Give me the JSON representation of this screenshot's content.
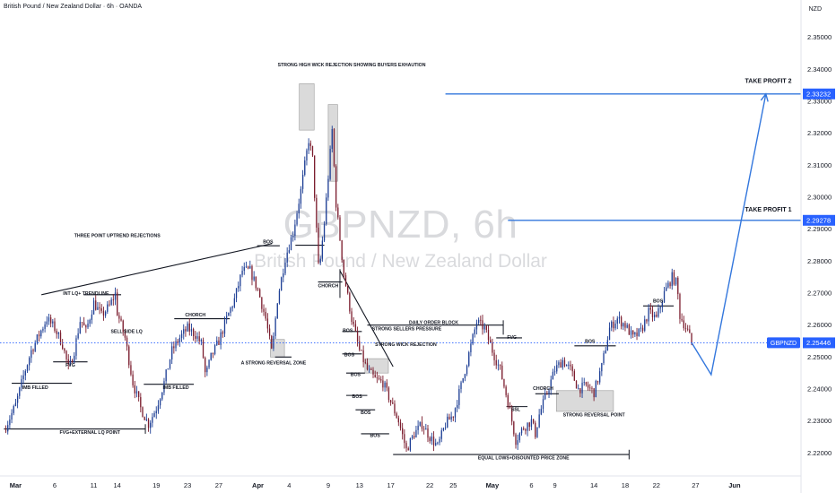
{
  "header": {
    "title": "British Pound / New Zealand Dollar · 6h · OANDA"
  },
  "watermark": {
    "symbol": "GBPNZD, 6h",
    "name": "British Pound / New Zealand Dollar"
  },
  "price_axis": {
    "currency": "NZD"
  },
  "chart_data": {
    "type": "candlestick",
    "symbol": "GBPNZD",
    "interval": "6h",
    "source": "OANDA",
    "y_ticks": [
      2.22,
      2.23,
      2.24,
      2.25,
      2.26,
      2.27,
      2.28,
      2.29,
      2.3,
      2.31,
      2.32,
      2.33,
      2.34,
      2.35
    ],
    "y_tick_labels": [
      "2.22000",
      "2.23000",
      "2.24000",
      "2.25000",
      "2.26000",
      "2.27000",
      "2.28000",
      "2.29000",
      "2.30000",
      "2.31000",
      "2.32000",
      "2.33000",
      "2.34000",
      "2.35000"
    ],
    "ylim": [
      2.2128,
      2.3617
    ],
    "x_ticks": [
      {
        "label": "Mar",
        "day": 0,
        "bold": true
      },
      {
        "label": "6",
        "day": 5
      },
      {
        "label": "11",
        "day": 10
      },
      {
        "label": "14",
        "day": 13
      },
      {
        "label": "19",
        "day": 18
      },
      {
        "label": "23",
        "day": 22
      },
      {
        "label": "27",
        "day": 26
      },
      {
        "label": "Apr",
        "day": 31,
        "bold": true
      },
      {
        "label": "4",
        "day": 35
      },
      {
        "label": "9",
        "day": 40
      },
      {
        "label": "13",
        "day": 44
      },
      {
        "label": "17",
        "day": 48
      },
      {
        "label": "22",
        "day": 53
      },
      {
        "label": "25",
        "day": 56
      },
      {
        "label": "May",
        "day": 61,
        "bold": true
      },
      {
        "label": "6",
        "day": 66
      },
      {
        "label": "9",
        "day": 69
      },
      {
        "label": "14",
        "day": 74
      },
      {
        "label": "18",
        "day": 78
      },
      {
        "label": "22",
        "day": 82
      },
      {
        "label": "27",
        "day": 87
      },
      {
        "label": "Jun",
        "day": 92,
        "bold": true
      }
    ],
    "xlim_days": [
      -2,
      100.5
    ],
    "price_path": [
      [
        -1.5,
        2.227
      ],
      [
        0,
        2.235
      ],
      [
        1,
        2.244
      ],
      [
        2,
        2.252
      ],
      [
        4,
        2.262
      ],
      [
        5,
        2.259
      ],
      [
        6,
        2.254
      ],
      [
        6.8,
        2.246
      ],
      [
        7.5,
        2.252
      ],
      [
        8.3,
        2.262
      ],
      [
        9,
        2.258
      ],
      [
        10,
        2.267
      ],
      [
        11,
        2.263
      ],
      [
        12,
        2.266
      ],
      [
        12.8,
        2.27
      ],
      [
        13,
        2.264
      ],
      [
        14,
        2.256
      ],
      [
        15,
        2.242
      ],
      [
        16,
        2.234
      ],
      [
        17,
        2.229
      ],
      [
        18,
        2.234
      ],
      [
        19,
        2.242
      ],
      [
        20,
        2.252
      ],
      [
        21,
        2.256
      ],
      [
        22,
        2.259
      ],
      [
        23,
        2.257
      ],
      [
        23.8,
        2.254
      ],
      [
        24.3,
        2.244
      ],
      [
        25,
        2.25
      ],
      [
        26,
        2.255
      ],
      [
        27,
        2.262
      ],
      [
        28,
        2.268
      ],
      [
        29,
        2.277
      ],
      [
        30,
        2.277
      ],
      [
        31,
        2.271
      ],
      [
        32,
        2.262
      ],
      [
        32.8,
        2.251
      ],
      [
        33.5,
        2.268
      ],
      [
        34.5,
        2.281
      ],
      [
        35.5,
        2.289
      ],
      [
        36.5,
        2.302
      ],
      [
        37.5,
        2.318
      ],
      [
        38,
        2.312
      ],
      [
        38.8,
        2.276
      ],
      [
        39.5,
        2.292
      ],
      [
        40.5,
        2.321
      ],
      [
        41,
        2.298
      ],
      [
        42,
        2.276
      ],
      [
        43,
        2.262
      ],
      [
        44,
        2.252
      ],
      [
        45,
        2.246
      ],
      [
        46,
        2.243
      ],
      [
        47,
        2.242
      ],
      [
        48,
        2.236
      ],
      [
        49,
        2.23
      ],
      [
        50,
        2.221
      ],
      [
        51,
        2.226
      ],
      [
        52,
        2.229
      ],
      [
        53,
        2.225
      ],
      [
        54,
        2.222
      ],
      [
        55,
        2.229
      ],
      [
        56,
        2.232
      ],
      [
        57,
        2.241
      ],
      [
        58,
        2.251
      ],
      [
        59,
        2.261
      ],
      [
        60,
        2.259
      ],
      [
        61,
        2.252
      ],
      [
        62,
        2.246
      ],
      [
        63,
        2.236
      ],
      [
        64,
        2.224
      ],
      [
        65,
        2.228
      ],
      [
        66,
        2.23
      ],
      [
        66.5,
        2.226
      ],
      [
        67,
        2.232
      ],
      [
        68,
        2.239
      ],
      [
        69,
        2.246
      ],
      [
        70,
        2.249
      ],
      [
        71,
        2.246
      ],
      [
        72,
        2.24
      ],
      [
        73,
        2.241
      ],
      [
        74,
        2.239
      ],
      [
        75,
        2.247
      ],
      [
        76,
        2.259
      ],
      [
        77,
        2.262
      ],
      [
        78,
        2.26
      ],
      [
        79,
        2.256
      ],
      [
        80,
        2.258
      ],
      [
        81,
        2.264
      ],
      [
        82,
        2.262
      ],
      [
        83,
        2.27
      ],
      [
        84,
        2.275
      ],
      [
        84.6,
        2.273
      ],
      [
        85,
        2.263
      ],
      [
        86,
        2.258
      ],
      [
        86.5,
        2.2545
      ]
    ],
    "last_price": {
      "label": "GBPNZD",
      "value": 2.25446,
      "value_text": "2.25446"
    },
    "levels": [
      {
        "name": "TAKE PROFIT 2",
        "value": 2.33232,
        "value_text": "2.33232",
        "from_day": 55
      },
      {
        "name": "TAKE PROFIT 1",
        "value": 2.29278,
        "value_text": "2.29278",
        "from_day": 63
      }
    ],
    "projection": [
      [
        86.5,
        2.2545
      ],
      [
        89,
        2.2445
      ],
      [
        96,
        2.3323
      ]
    ],
    "zones": [
      {
        "d0": 32.6,
        "d1": 34.4,
        "p0": 2.25,
        "p1": 2.2555
      },
      {
        "d0": 36.3,
        "d1": 38.2,
        "p0": 2.321,
        "p1": 2.3355
      },
      {
        "d0": 40.0,
        "d1": 41.2,
        "p0": 2.305,
        "p1": 2.329
      },
      {
        "d0": 44.7,
        "d1": 47.7,
        "p0": 2.245,
        "p1": 2.2495
      },
      {
        "d0": 69.2,
        "d1": 76.5,
        "p0": 2.233,
        "p1": 2.2395
      }
    ],
    "lines": [
      {
        "pts": [
          [
            -1.5,
            2.2275
          ],
          [
            16.6,
            2.2275
          ]
        ]
      },
      {
        "pts": [
          [
            -0.5,
            2.2418
          ],
          [
            7.2,
            2.2418
          ]
        ]
      },
      {
        "pts": [
          [
            3.3,
            2.2695
          ],
          [
            32.8,
            2.2855
          ]
        ]
      },
      {
        "pts": [
          [
            4.8,
            2.2485
          ],
          [
            9.2,
            2.2485
          ]
        ]
      },
      {
        "pts": [
          [
            8.7,
            2.2695
          ],
          [
            13.5,
            2.2695
          ]
        ]
      },
      {
        "pts": [
          [
            16.4,
            2.2415
          ],
          [
            22.8,
            2.2415
          ]
        ]
      },
      {
        "pts": [
          [
            20.3,
            2.262
          ],
          [
            27.4,
            2.262
          ]
        ]
      },
      {
        "pts": [
          [
            30.9,
            2.2848
          ],
          [
            33.8,
            2.2848
          ]
        ]
      },
      {
        "pts": [
          [
            33.2,
            2.25
          ],
          [
            35.3,
            2.25
          ]
        ]
      },
      {
        "pts": [
          [
            35.8,
            2.285
          ],
          [
            39.5,
            2.285
          ]
        ]
      },
      {
        "pts": [
          [
            38.7,
            2.2735
          ],
          [
            41.8,
            2.2735
          ]
        ]
      },
      {
        "pts": [
          [
            41.5,
            2.277
          ],
          [
            48.3,
            2.247
          ]
        ]
      },
      {
        "pts": [
          [
            41.8,
            2.258
          ],
          [
            44.3,
            2.258
          ]
        ]
      },
      {
        "pts": [
          [
            41.8,
            2.251
          ],
          [
            44.3,
            2.251
          ]
        ]
      },
      {
        "pts": [
          [
            42.3,
            2.245
          ],
          [
            44.7,
            2.245
          ]
        ]
      },
      {
        "pts": [
          [
            42.3,
            2.238
          ],
          [
            45.0,
            2.238
          ]
        ]
      },
      {
        "pts": [
          [
            43.5,
            2.2335
          ],
          [
            46.0,
            2.2335
          ]
        ]
      },
      {
        "pts": [
          [
            44.2,
            2.226
          ],
          [
            47.8,
            2.226
          ]
        ]
      },
      {
        "pts": [
          [
            45.0,
            2.26
          ],
          [
            62.4,
            2.26
          ]
        ]
      },
      {
        "pts": [
          [
            48.3,
            2.2195
          ],
          [
            78.5,
            2.2195
          ]
        ]
      },
      {
        "pts": [
          [
            61.5,
            2.256
          ],
          [
            64.8,
            2.256
          ]
        ]
      },
      {
        "pts": [
          [
            62.8,
            2.2345
          ],
          [
            65.5,
            2.2345
          ]
        ]
      },
      {
        "pts": [
          [
            66.5,
            2.2385
          ],
          [
            69.5,
            2.2385
          ]
        ]
      },
      {
        "pts": [
          [
            71.5,
            2.2535
          ],
          [
            76.8,
            2.2535
          ]
        ]
      },
      {
        "pts": [
          [
            80.3,
            2.266
          ],
          [
            84.2,
            2.266
          ]
        ]
      }
    ],
    "ticks_marks": [
      {
        "d": 16.6,
        "p0": 2.226,
        "p1": 2.229
      },
      {
        "d": 41.5,
        "p0": 2.2685,
        "p1": 2.2775
      },
      {
        "d": 62.4,
        "p0": 2.257,
        "p1": 2.2615
      },
      {
        "d": 78.5,
        "p0": 2.218,
        "p1": 2.221
      }
    ],
    "annotations": [
      {
        "text": "STRONG HIGH WICK REJECTION SHOWING BUYERS EXHAUTION",
        "day": 43.0,
        "price": 2.341,
        "align": "middle"
      },
      {
        "text": "THREE POINT UPTREND REJECTIONS",
        "day": 13.0,
        "price": 2.2875,
        "align": "middle"
      },
      {
        "text": "INT LQ+ TRENDLINE",
        "day": 9.0,
        "price": 2.2695,
        "align": "middle"
      },
      {
        "text": "SELL SIDE LQ",
        "day": 14.2,
        "price": 2.2575,
        "align": "middle"
      },
      {
        "text": "CHORCH",
        "day": 23.0,
        "price": 2.2627,
        "align": "middle"
      },
      {
        "text": "FVG",
        "day": 7.0,
        "price": 2.247,
        "align": "middle"
      },
      {
        "text": "IMB FILLED",
        "day": 2.5,
        "price": 2.24,
        "align": "middle"
      },
      {
        "text": "IMB FILLED",
        "day": 20.5,
        "price": 2.24,
        "align": "middle"
      },
      {
        "text": "FVG+EXTERNAL LQ POINT",
        "day": 9.5,
        "price": 2.226,
        "align": "middle"
      },
      {
        "text": "BOS",
        "day": 32.3,
        "price": 2.2855,
        "align": "middle"
      },
      {
        "text": "A STRONG REVERSAL ZONE",
        "day": 33.0,
        "price": 2.2477,
        "align": "middle"
      },
      {
        "text": "CHORCH",
        "day": 40.0,
        "price": 2.2718,
        "align": "middle"
      },
      {
        "text": "BOS",
        "day": 42.5,
        "price": 2.2578,
        "align": "middle"
      },
      {
        "text": "BOS",
        "day": 42.7,
        "price": 2.2502,
        "align": "middle"
      },
      {
        "text": "BOS",
        "day": 43.5,
        "price": 2.244,
        "align": "middle"
      },
      {
        "text": "BOS",
        "day": 43.7,
        "price": 2.2372,
        "align": "middle"
      },
      {
        "text": "BOS",
        "day": 44.8,
        "price": 2.2322,
        "align": "middle"
      },
      {
        "text": "BOS",
        "day": 46.0,
        "price": 2.225,
        "align": "middle"
      },
      {
        "text": "STRONG SELLERS PRESSURE",
        "day": 45.6,
        "price": 2.2583,
        "align": "start"
      },
      {
        "text": "STRONG WICK REJECTION",
        "day": 46.0,
        "price": 2.2535,
        "align": "start"
      },
      {
        "text": "DAILY ORDER BLOCK",
        "day": 53.5,
        "price": 2.2603,
        "align": "middle"
      },
      {
        "text": "EQUAL LOWS+DISOUNTED PRICE ZONE",
        "day": 65.0,
        "price": 2.218,
        "align": "middle"
      },
      {
        "text": "FVG",
        "day": 63.5,
        "price": 2.2557,
        "align": "middle"
      },
      {
        "text": "SSL",
        "day": 64.0,
        "price": 2.2332,
        "align": "middle"
      },
      {
        "text": "CHORCH",
        "day": 67.5,
        "price": 2.2397,
        "align": "middle"
      },
      {
        "text": "BOS",
        "day": 73.5,
        "price": 2.2545,
        "align": "middle"
      },
      {
        "text": "STRONG REVERSAL POINT",
        "day": 74.0,
        "price": 2.2315,
        "align": "middle"
      },
      {
        "text": "BOS",
        "day": 82.2,
        "price": 2.267,
        "align": "middle"
      },
      {
        "text": "TAKE PROFIT 2",
        "day": 99.3,
        "price": 2.3358,
        "align": "end"
      },
      {
        "text": "TAKE PROFIT 1",
        "day": 99.3,
        "price": 2.2955,
        "align": "end"
      }
    ],
    "colors": {
      "bull": "#1e3f95",
      "bear": "#7b1d2e",
      "level": "#3377dd",
      "annotation": "#131722",
      "zone": "rgba(150,150,150,0.35)",
      "last_price_line": "#2962ff",
      "grid": "#ffffff",
      "axis_text": "#131722"
    },
    "grid": false
  }
}
